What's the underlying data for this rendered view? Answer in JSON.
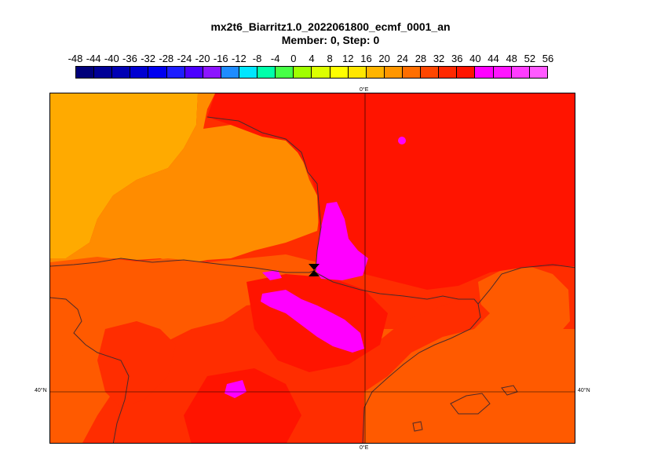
{
  "title": {
    "line1": "mx2t6_Biarritz1.0_2022061800_ecmf_0001_an",
    "line2": "Member: 0, Step: 0"
  },
  "colorbar": {
    "labels": [
      "-48",
      "-44",
      "-40",
      "-36",
      "-32",
      "-28",
      "-24",
      "-20",
      "-16",
      "-12",
      "-8",
      "-4",
      "0",
      "4",
      "8",
      "12",
      "16",
      "20",
      "24",
      "28",
      "32",
      "36",
      "40",
      "44",
      "48",
      "52",
      "56"
    ],
    "colors": [
      "#00007a",
      "#000096",
      "#0000b4",
      "#0000d2",
      "#0000f0",
      "#1e1eff",
      "#4b00ff",
      "#8c14ff",
      "#1e8cff",
      "#00e6ff",
      "#00ffaa",
      "#46ff46",
      "#a0ff00",
      "#dcff00",
      "#ffff00",
      "#ffe600",
      "#ffb400",
      "#ff9600",
      "#ff6e00",
      "#ff4600",
      "#ff2800",
      "#ff1400",
      "#ff00ff",
      "#ff14ff",
      "#ff3cff",
      "#ff5aff"
    ]
  },
  "map": {
    "colors": {
      "c16_20": "#ffaa00",
      "c20_24": "#ff8c00",
      "c24_28": "#ff5a00",
      "c28_32": "#ff2d00",
      "c32_36": "#ff1400",
      "c40_plus": "#ff00ff",
      "coast": "#4a2a2a",
      "grid": "#000000"
    },
    "gridlines": {
      "meridian_top": "0°E",
      "meridian_bottom": "0°E",
      "parallel_left": "40°N",
      "parallel_right": "40°N"
    },
    "station_marker": "Biarritz"
  }
}
